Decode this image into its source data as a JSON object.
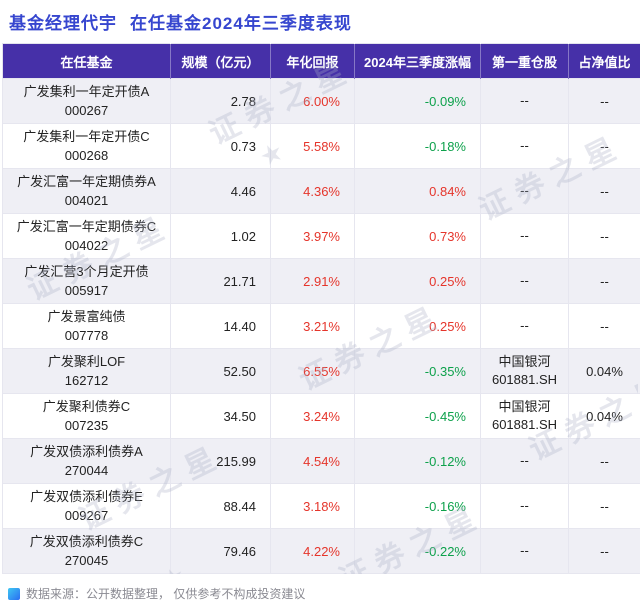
{
  "page": {
    "title_primary": "基金经理代宇",
    "title_secondary": "在任基金2024年三季度表现",
    "footer_text": "数据来源：公开数据整理， 仅供参考不构成投资建议",
    "watermark_text": "证券之星",
    "watermark_star": "★"
  },
  "colors": {
    "title_blue": "#3646cf",
    "header_bg": "#4630a8",
    "header_text": "#ffffff",
    "stripe_bg": "#efeff5",
    "positive_red": "#e5352b",
    "negative_green": "#0da14b",
    "border": "#e6e6ef",
    "footer_text": "#8a8a92",
    "watermark": "#aab0c6"
  },
  "chart_data": {
    "type": "table",
    "title": "基金经理代宇 在任基金2024年三季度表现",
    "source_note": "数据来源：公开数据整理， 仅供参考不构成投资建议",
    "columns": [
      "在任基金",
      "规模（亿元）",
      "年化回报",
      "2024年三季度涨幅",
      "第一重仓股",
      "占净值比"
    ],
    "rows": [
      {
        "name": "广发集利一年定开债A",
        "code": "000267",
        "scale": "2.78",
        "annual_return": "6.00%",
        "q3_change": "-0.09%",
        "q3_trend": "down",
        "holding_name": "--",
        "holding_code": "",
        "net_ratio": "--"
      },
      {
        "name": "广发集利一年定开债C",
        "code": "000268",
        "scale": "0.73",
        "annual_return": "5.58%",
        "q3_change": "-0.18%",
        "q3_trend": "down",
        "holding_name": "--",
        "holding_code": "",
        "net_ratio": "--"
      },
      {
        "name": "广发汇富一年定期债券A",
        "code": "004021",
        "scale": "4.46",
        "annual_return": "4.36%",
        "q3_change": "0.84%",
        "q3_trend": "up",
        "holding_name": "--",
        "holding_code": "",
        "net_ratio": "--"
      },
      {
        "name": "广发汇富一年定期债券C",
        "code": "004022",
        "scale": "1.02",
        "annual_return": "3.97%",
        "q3_change": "0.73%",
        "q3_trend": "up",
        "holding_name": "--",
        "holding_code": "",
        "net_ratio": "--"
      },
      {
        "name": "广发汇营3个月定开债",
        "code": "005917",
        "scale": "21.71",
        "annual_return": "2.91%",
        "q3_change": "0.25%",
        "q3_trend": "up",
        "holding_name": "--",
        "holding_code": "",
        "net_ratio": "--"
      },
      {
        "name": "广发景富纯债",
        "code": "007778",
        "scale": "14.40",
        "annual_return": "3.21%",
        "q3_change": "0.25%",
        "q3_trend": "up",
        "holding_name": "--",
        "holding_code": "",
        "net_ratio": "--"
      },
      {
        "name": "广发聚利LOF",
        "code": "162712",
        "scale": "52.50",
        "annual_return": "6.55%",
        "q3_change": "-0.35%",
        "q3_trend": "down",
        "holding_name": "中国银河",
        "holding_code": "601881.SH",
        "net_ratio": "0.04%"
      },
      {
        "name": "广发聚利债券C",
        "code": "007235",
        "scale": "34.50",
        "annual_return": "3.24%",
        "q3_change": "-0.45%",
        "q3_trend": "down",
        "holding_name": "中国银河",
        "holding_code": "601881.SH",
        "net_ratio": "0.04%"
      },
      {
        "name": "广发双债添利债券A",
        "code": "270044",
        "scale": "215.99",
        "annual_return": "4.54%",
        "q3_change": "-0.12%",
        "q3_trend": "down",
        "holding_name": "--",
        "holding_code": "",
        "net_ratio": "--"
      },
      {
        "name": "广发双债添利债券E",
        "code": "009267",
        "scale": "88.44",
        "annual_return": "3.18%",
        "q3_change": "-0.16%",
        "q3_trend": "down",
        "holding_name": "--",
        "holding_code": "",
        "net_ratio": "--"
      },
      {
        "name": "广发双债添利债券C",
        "code": "270045",
        "scale": "79.46",
        "annual_return": "4.22%",
        "q3_change": "-0.22%",
        "q3_trend": "down",
        "holding_name": "--",
        "holding_code": "",
        "net_ratio": "--"
      }
    ]
  }
}
